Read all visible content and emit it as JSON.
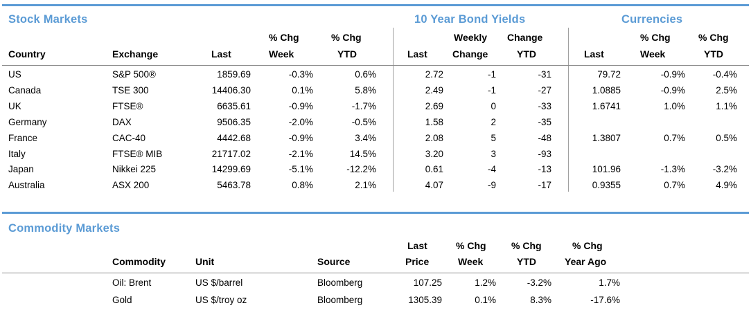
{
  "colors": {
    "accent": "#5b9bd5",
    "text": "#000000",
    "background": "#ffffff"
  },
  "stock_section": {
    "stock_title": "Stock Markets",
    "bond_title": "10 Year Bond Yields",
    "currency_title": "Currencies",
    "headers": {
      "country": "Country",
      "exchange": "Exchange",
      "last": "Last",
      "chg_week_line1": "% Chg",
      "chg_week_line2": "Week",
      "chg_ytd_line1": "% Chg",
      "chg_ytd_line2": "YTD",
      "bond_last": "Last",
      "bond_weekly_line1": "Weekly",
      "bond_weekly_line2": "Change",
      "bond_change_line1": "Change",
      "bond_change_line2": "YTD",
      "cur_last": "Last",
      "cur_week_line1": "% Chg",
      "cur_week_line2": "Week",
      "cur_ytd_line1": "% Chg",
      "cur_ytd_line2": "YTD"
    },
    "rows": [
      {
        "country": "US",
        "exchange": "S&P 500®",
        "last": "1859.69",
        "chg_week": "-0.3%",
        "chg_ytd": "0.6%",
        "bond_last": "2.72",
        "bond_weekly": "-1",
        "bond_ytd": "-31",
        "cur_last": "79.72",
        "cur_week": "-0.9%",
        "cur_ytd": "-0.4%"
      },
      {
        "country": "Canada",
        "exchange": "TSE 300",
        "last": "14406.30",
        "chg_week": "0.1%",
        "chg_ytd": "5.8%",
        "bond_last": "2.49",
        "bond_weekly": "-1",
        "bond_ytd": "-27",
        "cur_last": "1.0885",
        "cur_week": "-0.9%",
        "cur_ytd": "2.5%"
      },
      {
        "country": "UK",
        "exchange": "FTSE®",
        "last": "6635.61",
        "chg_week": "-0.9%",
        "chg_ytd": "-1.7%",
        "bond_last": "2.69",
        "bond_weekly": "0",
        "bond_ytd": "-33",
        "cur_last": "1.6741",
        "cur_week": "1.0%",
        "cur_ytd": "1.1%"
      },
      {
        "country": "Germany",
        "exchange": "DAX",
        "last": "9506.35",
        "chg_week": "-2.0%",
        "chg_ytd": "-0.5%",
        "bond_last": "1.58",
        "bond_weekly": "2",
        "bond_ytd": "-35",
        "cur_last": "",
        "cur_week": "",
        "cur_ytd": ""
      },
      {
        "country": "France",
        "exchange": "CAC-40",
        "last": "4442.68",
        "chg_week": "-0.9%",
        "chg_ytd": "3.4%",
        "bond_last": "2.08",
        "bond_weekly": "5",
        "bond_ytd": "-48",
        "cur_last": "1.3807",
        "cur_week": "0.7%",
        "cur_ytd": "0.5%"
      },
      {
        "country": "Italy",
        "exchange": "FTSE® MIB",
        "last": "21717.02",
        "chg_week": "-2.1%",
        "chg_ytd": "14.5%",
        "bond_last": "3.20",
        "bond_weekly": "3",
        "bond_ytd": "-93",
        "cur_last": "",
        "cur_week": "",
        "cur_ytd": ""
      },
      {
        "country": "Japan",
        "exchange": "Nikkei 225",
        "last": "14299.69",
        "chg_week": "-5.1%",
        "chg_ytd": "-12.2%",
        "bond_last": "0.61",
        "bond_weekly": "-4",
        "bond_ytd": "-13",
        "cur_last": "101.96",
        "cur_week": "-1.3%",
        "cur_ytd": "-3.2%"
      },
      {
        "country": "Australia",
        "exchange": "ASX 200",
        "last": "5463.78",
        "chg_week": "0.8%",
        "chg_ytd": "2.1%",
        "bond_last": "4.07",
        "bond_weekly": "-9",
        "bond_ytd": "-17",
        "cur_last": "0.9355",
        "cur_week": "0.7%",
        "cur_ytd": "4.9%"
      }
    ]
  },
  "commodity_section": {
    "title": "Commodity Markets",
    "headers": {
      "commodity": "Commodity",
      "unit": "Unit",
      "source": "Source",
      "price_line1": "Last",
      "price_line2": "Price",
      "week_line1": "% Chg",
      "week_line2": "Week",
      "ytd_line1": "% Chg",
      "ytd_line2": "YTD",
      "yearago_line1": "% Chg",
      "yearago_line2": "Year Ago"
    },
    "rows": [
      {
        "commodity": "Oil: Brent",
        "unit": "US $/barrel",
        "source": "Bloomberg",
        "price": "107.25",
        "week": "1.2%",
        "ytd": "-3.2%",
        "yearago": "1.7%"
      },
      {
        "commodity": "Gold",
        "unit": "US $/troy oz",
        "source": "Bloomberg",
        "price": "1305.39",
        "week": "0.1%",
        "ytd": "8.3%",
        "yearago": "-17.6%"
      }
    ]
  }
}
